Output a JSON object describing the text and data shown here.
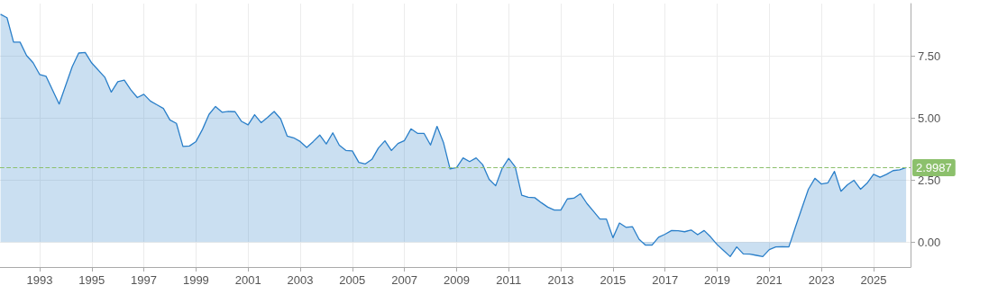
{
  "chart_data": {
    "type": "area",
    "x": [
      1991.5,
      1991.75,
      1992.0,
      1992.25,
      1992.5,
      1992.75,
      1993.0,
      1993.25,
      1993.75,
      1994.25,
      1994.5,
      1994.75,
      1995.0,
      1995.5,
      1995.75,
      1996.0,
      1996.25,
      1996.5,
      1996.75,
      1997.0,
      1997.25,
      1997.5,
      1997.75,
      1998.0,
      1998.25,
      1998.5,
      1998.75,
      1999.0,
      1999.25,
      1999.5,
      1999.75,
      2000.0,
      2000.25,
      2000.5,
      2000.75,
      2001.0,
      2001.25,
      2001.5,
      2001.75,
      2002.0,
      2002.25,
      2002.5,
      2002.75,
      2003.0,
      2003.25,
      2003.5,
      2003.75,
      2004.0,
      2004.25,
      2004.5,
      2004.75,
      2005.0,
      2005.25,
      2005.5,
      2005.75,
      2006.0,
      2006.25,
      2006.5,
      2006.75,
      2007.0,
      2007.25,
      2007.5,
      2007.75,
      2008.0,
      2008.25,
      2008.5,
      2008.75,
      2009.0,
      2009.25,
      2009.5,
      2009.75,
      2010.0,
      2010.25,
      2010.5,
      2010.75,
      2011.0,
      2011.25,
      2011.5,
      2011.75,
      2012.0,
      2012.25,
      2012.5,
      2012.75,
      2013.0,
      2013.25,
      2013.5,
      2013.75,
      2014.0,
      2014.25,
      2014.5,
      2014.75,
      2015.0,
      2015.25,
      2015.5,
      2015.75,
      2016.0,
      2016.25,
      2016.5,
      2016.75,
      2017.0,
      2017.25,
      2017.5,
      2017.75,
      2018.0,
      2018.25,
      2018.5,
      2018.75,
      2019.0,
      2019.25,
      2019.5,
      2019.75,
      2020.0,
      2020.25,
      2020.5,
      2020.75,
      2021.0,
      2021.25,
      2021.5,
      2021.75,
      2022.0,
      2022.25,
      2022.5,
      2022.75,
      2023.0,
      2023.25,
      2023.5,
      2023.75,
      2024.0,
      2024.25,
      2024.5,
      2024.75,
      2025.0,
      2025.25,
      2025.5,
      2025.75,
      2026.0,
      2026.25
    ],
    "series": [
      {
        "color": "#2a7fc9",
        "values": [
          9.17,
          9.03,
          8.05,
          8.05,
          7.51,
          7.22,
          6.75,
          6.67,
          5.56,
          7.06,
          7.61,
          7.63,
          7.21,
          6.64,
          6.04,
          6.46,
          6.52,
          6.13,
          5.82,
          5.95,
          5.68,
          5.53,
          5.38,
          4.92,
          4.78,
          3.85,
          3.87,
          4.05,
          4.54,
          5.14,
          5.46,
          5.23,
          5.26,
          5.25,
          4.86,
          4.72,
          5.13,
          4.81,
          5.02,
          5.26,
          4.96,
          4.27,
          4.2,
          4.05,
          3.81,
          4.05,
          4.31,
          3.95,
          4.4,
          3.9,
          3.69,
          3.67,
          3.21,
          3.15,
          3.33,
          3.79,
          4.08,
          3.69,
          3.97,
          4.09,
          4.56,
          4.38,
          4.38,
          3.91,
          4.66,
          4.0,
          2.95,
          3.0,
          3.39,
          3.24,
          3.39,
          3.12,
          2.53,
          2.27,
          2.97,
          3.37,
          3.03,
          1.89,
          1.81,
          1.79,
          1.59,
          1.41,
          1.29,
          1.29,
          1.74,
          1.77,
          1.95,
          1.56,
          1.25,
          0.93,
          0.93,
          0.18,
          0.77,
          0.6,
          0.62,
          0.12,
          -0.12,
          -0.12,
          0.2,
          0.32,
          0.47,
          0.46,
          0.42,
          0.49,
          0.3,
          0.47,
          0.21,
          -0.1,
          -0.34,
          -0.58,
          -0.19,
          -0.47,
          -0.48,
          -0.53,
          -0.58,
          -0.3,
          -0.19,
          -0.18,
          -0.19,
          0.6,
          1.37,
          2.13,
          2.57,
          2.34,
          2.39,
          2.85,
          2.05,
          2.31,
          2.49,
          2.13,
          2.37,
          2.73,
          2.61,
          2.73,
          2.88,
          2.91,
          3.0
        ]
      }
    ],
    "xlim": [
      1991.48,
      2026.42
    ],
    "xticks": [
      1993,
      1995,
      1997,
      1999,
      2001,
      2003,
      2005,
      2007,
      2009,
      2011,
      2013,
      2015,
      2017,
      2019,
      2021,
      2023,
      2025
    ],
    "ylim": [
      -1.0,
      9.6
    ],
    "yticks": [
      {
        "value": 0,
        "label": "0.00"
      },
      {
        "value": 2.5,
        "label": "2.50"
      },
      {
        "value": 5,
        "label": "5.00"
      },
      {
        "value": 7.5,
        "label": "7.50"
      }
    ],
    "grid": true,
    "marker": "none",
    "line_style": "solid",
    "ref_lines": [
      {
        "axis": "y",
        "value": 2.9987,
        "label": "2.9987",
        "color": "#8cc06c",
        "line_style": "dashed"
      }
    ]
  }
}
